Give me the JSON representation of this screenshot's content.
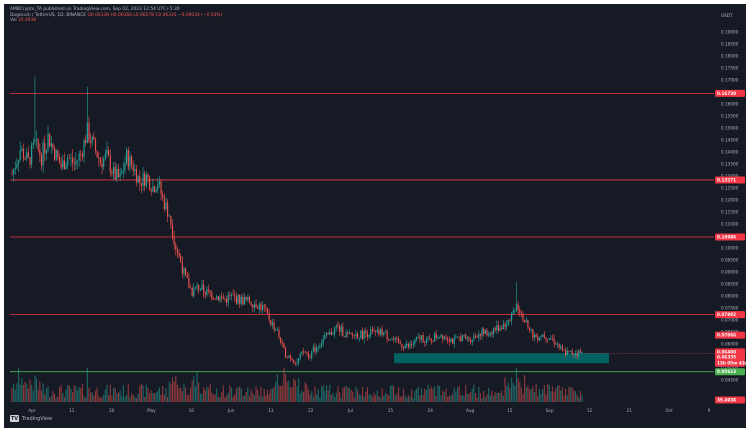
{
  "header": {
    "line1": "AMBCrypto_TA published on TradingView.com, Sep 02, 2023 12:54 UTC+5:30",
    "line2_prefix": "Dogecoin / TetherUS, 1D, BINANCE",
    "line2_values": "O0.06338 H0.06384 L0.06278 C0.06335 −0.00034 (−0.54%)",
    "line3_prefix": "Vol",
    "line3_value": "35.493K"
  },
  "colors": {
    "background": "#161a25",
    "bull": "#26a69a",
    "bear": "#ef5350",
    "level_line": "#f23645",
    "support_zone": "#006e6e",
    "support_line": "#4caf50"
  },
  "chart_data": {
    "type": "candlestick",
    "y_axis_unit": "USDT",
    "ylim": [
      0.044,
      0.195
    ],
    "y_ticks": [
      "0.19000",
      "0.18500",
      "0.18000",
      "0.17500",
      "0.17000",
      "0.16500",
      "0.16000",
      "0.15500",
      "0.15000",
      "0.14500",
      "0.14000",
      "0.13500",
      "0.13000",
      "0.12500",
      "0.12000",
      "0.11500",
      "0.11000",
      "0.10500",
      "0.10000",
      "0.09500",
      "0.09000",
      "0.08500",
      "0.08000",
      "0.07500",
      "0.07000",
      "0.06500",
      "0.06000",
      "0.05500",
      "0.05000",
      "0.04500"
    ],
    "x_ticks": [
      "Apr",
      "11",
      "20",
      "May",
      "16",
      "Jun",
      "13",
      "22",
      "Jul",
      "15",
      "24",
      "Aug",
      "15",
      "Sep",
      "12",
      "21",
      "Oct",
      "9"
    ],
    "price_levels": [
      {
        "label": "0.16730",
        "value": 0.1673
      },
      {
        "label": "0.13271",
        "value": 0.1327
      },
      {
        "label": "0.10986",
        "value": 0.1099
      },
      {
        "label": "0.07892",
        "value": 0.0789
      },
      {
        "label": "0.05613",
        "value": 0.0561
      }
    ],
    "tag_labels": [
      {
        "label": "0.07066",
        "value": 0.0707,
        "color": "#f23645"
      },
      {
        "label": "0.06400",
        "value": 0.064,
        "color": "#f23645"
      },
      {
        "label": "0.06335",
        "value": 0.062,
        "color": "#f23645"
      },
      {
        "label": "13h 05m 43s",
        "value": 0.0595,
        "color": "#f23645"
      },
      {
        "label": "0.05613",
        "value": 0.0561,
        "color": "#4caf50"
      },
      {
        "label": "35.493K",
        "value": 0.0455,
        "color": "#f23645"
      }
    ],
    "support_zone": {
      "low": 0.0595,
      "high": 0.0635
    },
    "close_path": [
      [
        0,
        0.135
      ],
      [
        5,
        0.145
      ],
      [
        10,
        0.14
      ],
      [
        14,
        0.147
      ],
      [
        18,
        0.142
      ],
      [
        22,
        0.15
      ],
      [
        26,
        0.144
      ],
      [
        30,
        0.138
      ],
      [
        34,
        0.142
      ],
      [
        38,
        0.139
      ],
      [
        42,
        0.143
      ],
      [
        46,
        0.152
      ],
      [
        50,
        0.146
      ],
      [
        54,
        0.14
      ],
      [
        58,
        0.142
      ],
      [
        62,
        0.135
      ],
      [
        66,
        0.133
      ],
      [
        70,
        0.142
      ],
      [
        74,
        0.138
      ],
      [
        78,
        0.132
      ],
      [
        82,
        0.134
      ],
      [
        86,
        0.13
      ],
      [
        89,
        0.132
      ],
      [
        92,
        0.125
      ],
      [
        96,
        0.119
      ],
      [
        100,
        0.106
      ],
      [
        103,
        0.1
      ],
      [
        106,
        0.093
      ],
      [
        110,
        0.088
      ],
      [
        114,
        0.09
      ],
      [
        118,
        0.088
      ],
      [
        122,
        0.087
      ],
      [
        126,
        0.086
      ],
      [
        130,
        0.085
      ],
      [
        134,
        0.086
      ],
      [
        138,
        0.085
      ],
      [
        142,
        0.0845
      ],
      [
        146,
        0.084
      ],
      [
        150,
        0.083
      ],
      [
        154,
        0.081
      ],
      [
        158,
        0.076
      ],
      [
        162,
        0.072
      ],
      [
        166,
        0.064
      ],
      [
        170,
        0.062
      ],
      [
        174,
        0.06
      ],
      [
        178,
        0.064
      ],
      [
        182,
        0.063
      ],
      [
        186,
        0.066
      ],
      [
        190,
        0.069
      ],
      [
        194,
        0.071
      ],
      [
        198,
        0.074
      ],
      [
        202,
        0.072
      ],
      [
        206,
        0.07
      ],
      [
        210,
        0.071
      ],
      [
        214,
        0.071
      ],
      [
        218,
        0.072
      ],
      [
        222,
        0.071
      ],
      [
        226,
        0.072
      ],
      [
        230,
        0.07
      ],
      [
        234,
        0.068
      ],
      [
        238,
        0.067
      ],
      [
        242,
        0.066
      ],
      [
        246,
        0.068
      ],
      [
        250,
        0.07
      ],
      [
        254,
        0.068
      ],
      [
        258,
        0.07
      ],
      [
        262,
        0.071
      ],
      [
        266,
        0.07
      ],
      [
        270,
        0.068
      ],
      [
        274,
        0.07
      ],
      [
        278,
        0.069
      ],
      [
        282,
        0.07
      ],
      [
        286,
        0.072
      ],
      [
        290,
        0.071
      ],
      [
        294,
        0.073
      ],
      [
        298,
        0.074
      ],
      [
        302,
        0.076
      ],
      [
        306,
        0.08
      ],
      [
        308,
        0.084
      ],
      [
        312,
        0.078
      ],
      [
        316,
        0.072
      ],
      [
        320,
        0.07
      ],
      [
        324,
        0.071
      ],
      [
        328,
        0.07
      ],
      [
        332,
        0.068
      ],
      [
        336,
        0.064
      ],
      [
        340,
        0.0635
      ],
      [
        344,
        0.064
      ],
      [
        348,
        0.0633
      ]
    ],
    "spikes": [
      {
        "index": 14,
        "high": 0.174
      },
      {
        "index": 46,
        "high": 0.17
      },
      {
        "index": 308,
        "high": 0.092
      }
    ]
  },
  "watermark": {
    "brand": "TradingView",
    "mark": "TV"
  }
}
